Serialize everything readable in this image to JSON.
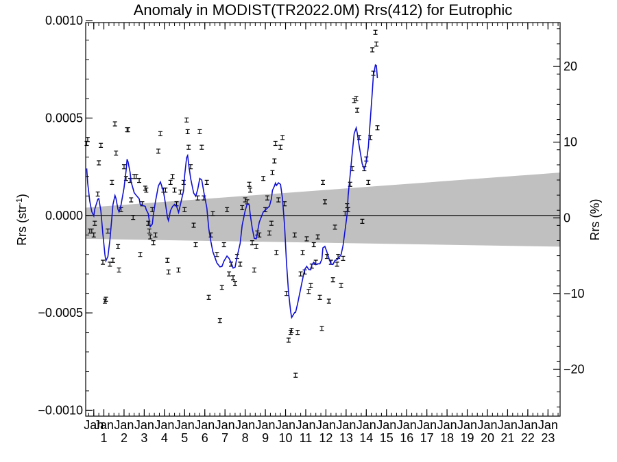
{
  "chart_data": {
    "type": "scatter",
    "title": "Anomaly in MODIST(TR2022.0M) Rrs(412) for Eutrophic",
    "ylabel_left": "Rrs (str",
    "ylabel_left_sup": "-1",
    "ylabel_left_end": ")",
    "ylabel_right": "Rrs (%)",
    "xlim": [
      2000.1,
      2023.6
    ],
    "ylim": [
      -0.00103,
      0.00099
    ],
    "ylim_right_percent": [
      -26.2,
      25.8
    ],
    "grid": false,
    "yticks_left": [
      {
        "value": 0.001,
        "label": "0.0010"
      },
      {
        "value": 0.0005,
        "label": "0.0005"
      },
      {
        "value": 0.0,
        "label": "0.0000"
      },
      {
        "value": -0.0005,
        "label": "−0.0005"
      },
      {
        "value": -0.001,
        "label": "−0.0010"
      }
    ],
    "yticks_right": [
      {
        "value": 20,
        "label": "20"
      },
      {
        "value": 10,
        "label": "10"
      },
      {
        "value": 0,
        "label": "0"
      },
      {
        "value": -10,
        "label": "−10"
      },
      {
        "value": -20,
        "label": "−20"
      }
    ],
    "xticks": [
      {
        "x": 2000.5,
        "month": "Jan",
        "year": ""
      },
      {
        "x": 2001.0,
        "month": "Jan",
        "year": "1"
      },
      {
        "x": 2002.0,
        "month": "Jan",
        "year": "2"
      },
      {
        "x": 2003.0,
        "month": "Jan",
        "year": "3"
      },
      {
        "x": 2004.0,
        "month": "Jan",
        "year": "4"
      },
      {
        "x": 2005.0,
        "month": "Jan",
        "year": "5"
      },
      {
        "x": 2006.0,
        "month": "Jan",
        "year": "6"
      },
      {
        "x": 2007.0,
        "month": "Jan",
        "year": "7"
      },
      {
        "x": 2008.0,
        "month": "Jan",
        "year": "8"
      },
      {
        "x": 2009.0,
        "month": "Jan",
        "year": "9"
      },
      {
        "x": 2010.0,
        "month": "Jan",
        "year": "10"
      },
      {
        "x": 2011.0,
        "month": "Jan",
        "year": "11"
      },
      {
        "x": 2012.0,
        "month": "Jan",
        "year": "12"
      },
      {
        "x": 2013.0,
        "month": "Jan",
        "year": "13"
      },
      {
        "x": 2014.0,
        "month": "Jan",
        "year": "14"
      },
      {
        "x": 2015.0,
        "month": "Jan",
        "year": "15"
      },
      {
        "x": 2016.0,
        "month": "Jan",
        "year": "16"
      },
      {
        "x": 2017.0,
        "month": "Jan",
        "year": "17"
      },
      {
        "x": 2018.0,
        "month": "Jan",
        "year": "18"
      },
      {
        "x": 2019.0,
        "month": "Jan",
        "year": "19"
      },
      {
        "x": 2020.0,
        "month": "Jan",
        "year": "20"
      },
      {
        "x": 2021.0,
        "month": "Jan",
        "year": "21"
      },
      {
        "x": 2022.0,
        "month": "Jan",
        "year": "22"
      },
      {
        "x": 2023.0,
        "month": "Jan",
        "year": "23"
      }
    ],
    "band": {
      "x": [
        2000.1,
        2023.6
      ],
      "upper": [
        4e-05,
        0.00022
      ],
      "lower": [
        -0.00012,
        -0.00016
      ],
      "color": "#c0c0c0"
    },
    "zero_line_color": "#000000",
    "smooth_color": "#1010d0",
    "point_color": "#000000",
    "points": [
      [
        2000.15,
        0.00037
      ],
      [
        2000.2,
        0.00039
      ],
      [
        2000.3,
        -8e-05
      ],
      [
        2000.4,
        -8e-05
      ],
      [
        2000.5,
        -0.0001
      ],
      [
        2000.55,
        -4e-05
      ],
      [
        2000.7,
        0.00011
      ],
      [
        2000.75,
        0.00027
      ],
      [
        2000.85,
        0.00036
      ],
      [
        2000.95,
        -0.00024
      ],
      [
        2001.05,
        -0.00044
      ],
      [
        2001.1,
        -0.00043
      ],
      [
        2001.2,
        -8e-05
      ],
      [
        2001.3,
        -0.00025
      ],
      [
        2001.4,
        0.00017
      ],
      [
        2001.45,
        -0.00023
      ],
      [
        2001.55,
        0.00047
      ],
      [
        2001.6,
        0.00032
      ],
      [
        2001.7,
        -0.00016
      ],
      [
        2001.75,
        -0.00028
      ],
      [
        2001.85,
        3e-05
      ],
      [
        2002.0,
        0.00025
      ],
      [
        2002.1,
        0.00019
      ],
      [
        2002.15,
        0.00044
      ],
      [
        2002.2,
        0.00044
      ],
      [
        2002.3,
        0.00018
      ],
      [
        2002.35,
        8e-05
      ],
      [
        2002.45,
        -1e-05
      ],
      [
        2002.5,
        0.0002
      ],
      [
        2002.6,
        0.0002
      ],
      [
        2002.75,
        0.00018
      ],
      [
        2002.8,
        -0.0002
      ],
      [
        2002.9,
        6e-05
      ],
      [
        2003.05,
        0.00014
      ],
      [
        2003.1,
        0.00013
      ],
      [
        2003.2,
        -4e-05
      ],
      [
        2003.25,
        -8e-05
      ],
      [
        2003.3,
        -0.00011
      ],
      [
        2003.4,
        3e-05
      ],
      [
        2003.45,
        -0.00014
      ],
      [
        2003.55,
        -0.0001
      ],
      [
        2003.7,
        0.00033
      ],
      [
        2003.8,
        0.00042
      ],
      [
        2003.95,
        0.00013
      ],
      [
        2004.05,
        0.00013
      ],
      [
        2004.15,
        -0.00023
      ],
      [
        2004.2,
        -0.00029
      ],
      [
        2004.3,
        0.00017
      ],
      [
        2004.4,
        0.0002
      ],
      [
        2004.5,
        0.00013
      ],
      [
        2004.6,
        6e-05
      ],
      [
        2004.7,
        -0.00028
      ],
      [
        2004.8,
        0.00012
      ],
      [
        2004.95,
        0.00017
      ],
      [
        2005.0,
        3e-05
      ],
      [
        2005.1,
        0.00049
      ],
      [
        2005.15,
        0.00043
      ],
      [
        2005.2,
        0.00035
      ],
      [
        2005.3,
        0.00025
      ],
      [
        2005.45,
        -5e-05
      ],
      [
        2005.55,
        -0.00015
      ],
      [
        2005.65,
        9e-05
      ],
      [
        2005.75,
        0.00043
      ],
      [
        2005.85,
        0.00035
      ],
      [
        2005.95,
        9e-05
      ],
      [
        2006.1,
        0.00017
      ],
      [
        2006.2,
        -0.00042
      ],
      [
        2006.3,
        -0.0001
      ],
      [
        2006.4,
        1e-05
      ],
      [
        2006.6,
        -0.0002
      ],
      [
        2006.75,
        -0.00054
      ],
      [
        2006.85,
        -0.00037
      ],
      [
        2006.95,
        -0.00015
      ],
      [
        2007.1,
        3e-05
      ],
      [
        2007.2,
        -0.0003
      ],
      [
        2007.3,
        -0.00025
      ],
      [
        2007.4,
        -0.00032
      ],
      [
        2007.5,
        -0.00035
      ],
      [
        2007.6,
        -0.00021
      ],
      [
        2007.75,
        -0.00025
      ],
      [
        2007.85,
        4e-05
      ],
      [
        2008.0,
        8e-05
      ],
      [
        2008.1,
        7e-05
      ],
      [
        2008.2,
        0.00016
      ],
      [
        2008.25,
        0.00013
      ],
      [
        2008.35,
        -0.00014
      ],
      [
        2008.45,
        -0.00028
      ],
      [
        2008.55,
        -0.00016
      ],
      [
        2008.6,
        -9e-05
      ],
      [
        2008.7,
        -0.0001
      ],
      [
        2008.9,
        0.00019
      ],
      [
        2009.0,
        3e-05
      ],
      [
        2009.1,
        9e-05
      ],
      [
        2009.2,
        -9e-05
      ],
      [
        2009.3,
        -4e-05
      ],
      [
        2009.35,
        0.00022
      ],
      [
        2009.45,
        0.00028
      ],
      [
        2009.5,
        0.00037
      ],
      [
        2009.55,
        -0.00019
      ],
      [
        2009.65,
        8e-05
      ],
      [
        2009.75,
        0.00035
      ],
      [
        2009.85,
        0.0004
      ],
      [
        2009.95,
        6e-05
      ],
      [
        2010.05,
        -0.0004
      ],
      [
        2010.15,
        -0.00064
      ],
      [
        2010.25,
        -0.0006
      ],
      [
        2010.3,
        -0.00059
      ],
      [
        2010.45,
        -0.0001
      ],
      [
        2010.5,
        -0.00082
      ],
      [
        2010.6,
        -0.0006
      ],
      [
        2010.75,
        -0.0003
      ],
      [
        2010.85,
        -0.00019
      ],
      [
        2010.95,
        -0.00029
      ],
      [
        2011.05,
        -0.00012
      ],
      [
        2011.15,
        -0.00039
      ],
      [
        2011.25,
        -0.00036
      ],
      [
        2011.3,
        -0.00026
      ],
      [
        2011.4,
        -0.00015
      ],
      [
        2011.5,
        -0.00024
      ],
      [
        2011.6,
        -0.00011
      ],
      [
        2011.7,
        -0.00042
      ],
      [
        2011.8,
        -0.00058
      ],
      [
        2011.85,
        0.00017
      ],
      [
        2011.95,
        7e-05
      ],
      [
        2012.05,
        -0.00021
      ],
      [
        2012.15,
        -0.00044
      ],
      [
        2012.25,
        -0.00024
      ],
      [
        2012.35,
        -0.00033
      ],
      [
        2012.45,
        -6e-05
      ],
      [
        2012.55,
        -0.00025
      ],
      [
        2012.6,
        -0.00021
      ],
      [
        2012.75,
        -0.00036
      ],
      [
        2012.85,
        -0.00022
      ],
      [
        2012.95,
        1e-05
      ],
      [
        2013.05,
        5e-05
      ],
      [
        2013.1,
        3e-05
      ],
      [
        2013.2,
        0.00016
      ],
      [
        2013.3,
        0.00024
      ],
      [
        2013.4,
        0.00059
      ],
      [
        2013.5,
        0.0006
      ],
      [
        2013.55,
        0.00054
      ],
      [
        2013.65,
        0.0004
      ],
      [
        2013.8,
        -3e-05
      ],
      [
        2013.9,
        0.00024
      ],
      [
        2014.0,
        0.00029
      ],
      [
        2014.1,
        0.00017
      ],
      [
        2014.2,
        0.0004
      ],
      [
        2014.3,
        0.00085
      ],
      [
        2014.35,
        0.00073
      ],
      [
        2014.45,
        0.00094
      ],
      [
        2014.5,
        0.00088
      ],
      [
        2014.55,
        0.00045
      ]
    ]
  }
}
